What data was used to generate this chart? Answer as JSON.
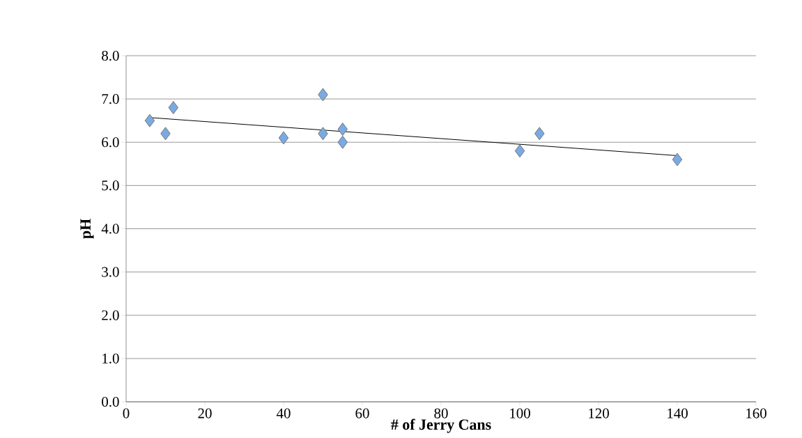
{
  "chart_data": {
    "type": "scatter",
    "xlabel": "# of Jerry Cans",
    "ylabel": "pH",
    "xlim": [
      0,
      160
    ],
    "xticks": [
      0,
      20,
      40,
      60,
      80,
      100,
      120,
      140,
      160
    ],
    "ylim": [
      0,
      8
    ],
    "yticks": [
      {
        "value": 0,
        "label": "0.0"
      },
      {
        "value": 1,
        "label": "1.0"
      },
      {
        "value": 2,
        "label": "2.0"
      },
      {
        "value": 3,
        "label": "3.0"
      },
      {
        "value": 4,
        "label": "4.0"
      },
      {
        "value": 5,
        "label": "5.0"
      },
      {
        "value": 6,
        "label": "6.0"
      },
      {
        "value": 7,
        "label": "7.0"
      },
      {
        "value": 8,
        "label": "8.0"
      }
    ],
    "grid": "y",
    "series": [
      {
        "marker": "diamond",
        "color": "#7aaae2",
        "x": [
          6,
          10,
          12,
          40,
          50,
          50,
          55,
          55,
          100,
          105,
          140
        ],
        "values": [
          6.5,
          6.2,
          6.8,
          6.1,
          7.1,
          6.2,
          6.3,
          6.0,
          5.8,
          6.2,
          5.6
        ]
      },
      {
        "type": "line",
        "marker": "none",
        "color": "#000000",
        "x": [
          6,
          140
        ],
        "values": [
          6.57,
          5.69
        ]
      }
    ]
  }
}
